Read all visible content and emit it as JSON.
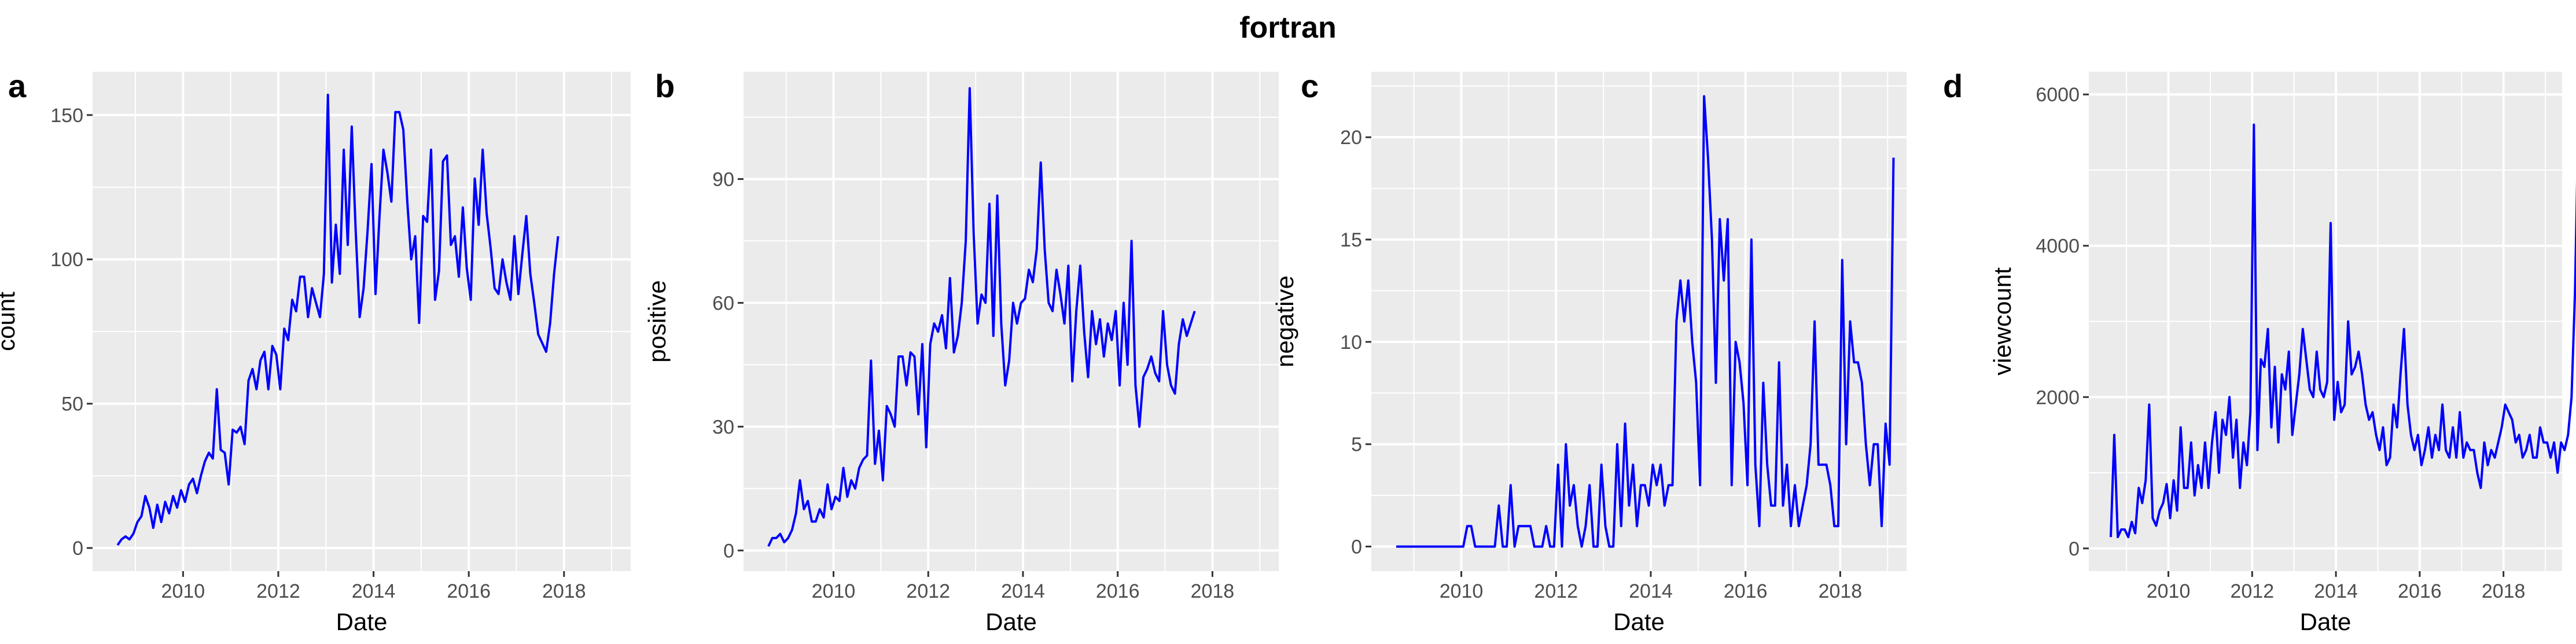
{
  "figure": {
    "title": "fortran"
  },
  "colors": {
    "panel_bg": "#ebebeb",
    "grid": "#ffffff",
    "line": "#0000ff",
    "tick": "#4d4d4d",
    "text": "#000000"
  },
  "chart_data": [
    {
      "type": "line",
      "panel": "a",
      "title": "",
      "xlabel": "Date",
      "ylabel": "count",
      "xlim": [
        2008.1,
        2019.4
      ],
      "ylim": [
        -8,
        165
      ],
      "xticks": [
        "2010",
        "2012",
        "2014",
        "2016",
        "2018"
      ],
      "yticks": [
        0,
        50,
        100,
        150
      ],
      "grid": true,
      "series": [
        {
          "x_start": "2008-08",
          "x_step": "month",
          "values": [
            1,
            3,
            4,
            3,
            5,
            9,
            11,
            18,
            14,
            7,
            15,
            9,
            16,
            12,
            18,
            14,
            20,
            16,
            22,
            24,
            19,
            25,
            30,
            33,
            31,
            55,
            34,
            33,
            22,
            41,
            40,
            42,
            36,
            58,
            62,
            55,
            65,
            68,
            55,
            70,
            67,
            55,
            76,
            72,
            86,
            82,
            94,
            94,
            80,
            90,
            85,
            80,
            95,
            157,
            92,
            112,
            95,
            138,
            105,
            146,
            110,
            80,
            90,
            110,
            133,
            88,
            115,
            138,
            130,
            120,
            151,
            151,
            145,
            120,
            100,
            108,
            78,
            115,
            113,
            138,
            86,
            96,
            134,
            136,
            105,
            108,
            94,
            118,
            97,
            86,
            128,
            112,
            138,
            116,
            104,
            90,
            88,
            100,
            92,
            86,
            108,
            88,
            102,
            115,
            95,
            85,
            74,
            71,
            68,
            78,
            95,
            108
          ]
        }
      ]
    },
    {
      "type": "line",
      "panel": "b",
      "title": "",
      "xlabel": "Date",
      "ylabel": "positive",
      "xlim": [
        2008.1,
        2019.4
      ],
      "ylim": [
        -5,
        116
      ],
      "xticks": [
        "2010",
        "2012",
        "2014",
        "2016",
        "2018"
      ],
      "yticks": [
        0,
        30,
        60,
        90
      ],
      "grid": true,
      "series": [
        {
          "x_start": "2008-08",
          "x_step": "month",
          "values": [
            1,
            3,
            3,
            4,
            2,
            3,
            5,
            9,
            17,
            10,
            12,
            7,
            7,
            10,
            8,
            16,
            10,
            13,
            12,
            20,
            13,
            17,
            15,
            20,
            22,
            23,
            46,
            21,
            29,
            17,
            35,
            33,
            30,
            47,
            47,
            40,
            48,
            47,
            33,
            50,
            25,
            50,
            55,
            53,
            57,
            49,
            66,
            48,
            52,
            60,
            75,
            112,
            77,
            55,
            62,
            60,
            84,
            52,
            86,
            55,
            40,
            46,
            60,
            55,
            60,
            61,
            68,
            65,
            73,
            94,
            73,
            60,
            58,
            68,
            62,
            55,
            69,
            41,
            58,
            69,
            53,
            42,
            58,
            50,
            56,
            47,
            55,
            51,
            58,
            40,
            60,
            45,
            75,
            40,
            30,
            42,
            44,
            47,
            43,
            41,
            58,
            45,
            40,
            38,
            50,
            56,
            52,
            55,
            58
          ]
        }
      ]
    },
    {
      "type": "line",
      "panel": "c",
      "title": "",
      "xlabel": "Date",
      "ylabel": "negative",
      "xlim": [
        2008.1,
        2019.4
      ],
      "ylim": [
        -1.2,
        23.2
      ],
      "xticks": [
        "2010",
        "2012",
        "2014",
        "2016",
        "2018"
      ],
      "yticks": [
        0,
        5,
        10,
        15,
        20
      ],
      "grid": true,
      "series": [
        {
          "x_start": "2008-08",
          "x_step": "month",
          "values": [
            0,
            0,
            0,
            0,
            0,
            0,
            0,
            0,
            0,
            0,
            0,
            0,
            0,
            0,
            0,
            0,
            0,
            0,
            1,
            1,
            0,
            0,
            0,
            0,
            0,
            0,
            2,
            0,
            0,
            3,
            0,
            1,
            1,
            1,
            1,
            0,
            0,
            0,
            1,
            0,
            0,
            4,
            0,
            5,
            2,
            3,
            1,
            0,
            1,
            3,
            0,
            0,
            4,
            1,
            0,
            0,
            5,
            1,
            6,
            2,
            4,
            1,
            3,
            3,
            2,
            4,
            3,
            4,
            2,
            3,
            3,
            11,
            13,
            11,
            13,
            10,
            8,
            3,
            22,
            19,
            15,
            8,
            16,
            13,
            16,
            3,
            10,
            9,
            7,
            3,
            15,
            4,
            1,
            8,
            4,
            2,
            2,
            9,
            2,
            4,
            1,
            3,
            1,
            2,
            3,
            5,
            11,
            4,
            4,
            4,
            3,
            1,
            1,
            14,
            5,
            11,
            9,
            9,
            8,
            5,
            3,
            5,
            5,
            1,
            6,
            4,
            19
          ]
        }
      ]
    },
    {
      "type": "line",
      "panel": "d",
      "title": "",
      "xlabel": "Date",
      "ylabel": "viewcount",
      "xlim": [
        2008.1,
        2019.4
      ],
      "ylim": [
        -300,
        6300
      ],
      "xticks": [
        "2010",
        "2012",
        "2014",
        "2016",
        "2018"
      ],
      "yticks": [
        0,
        2000,
        4000,
        6000
      ],
      "grid": true,
      "series": [
        {
          "x_start": "2008-08",
          "x_step": "month",
          "values": [
            150,
            1500,
            150,
            250,
            250,
            150,
            350,
            200,
            800,
            600,
            900,
            1900,
            400,
            300,
            500,
            600,
            850,
            400,
            900,
            500,
            1600,
            800,
            800,
            1400,
            700,
            1100,
            800,
            1400,
            800,
            1400,
            1800,
            1000,
            1700,
            1500,
            2000,
            1200,
            1700,
            800,
            1400,
            1100,
            1800,
            5600,
            1300,
            2500,
            2400,
            2900,
            1600,
            2400,
            1400,
            2300,
            2100,
            2600,
            1500,
            1900,
            2300,
            2900,
            2500,
            2100,
            2000,
            2600,
            2100,
            2000,
            2200,
            4300,
            1700,
            2200,
            1800,
            1900,
            3000,
            2300,
            2400,
            2600,
            2300,
            1900,
            1700,
            1800,
            1500,
            1300,
            1600,
            1100,
            1200,
            1900,
            1600,
            2300,
            2900,
            1900,
            1500,
            1300,
            1500,
            1100,
            1300,
            1600,
            1200,
            1500,
            1300,
            1900,
            1300,
            1200,
            1600,
            1200,
            1800,
            1200,
            1400,
            1300,
            1300,
            1000,
            800,
            1400,
            1100,
            1300,
            1200,
            1400,
            1600,
            1900,
            1800,
            1700,
            1400,
            1500,
            1200,
            1300,
            1500,
            1200,
            1200,
            1600,
            1400,
            1400,
            1200,
            1400,
            1000,
            1400,
            1300,
            1500,
            2000,
            3400,
            5800
          ]
        }
      ]
    }
  ]
}
